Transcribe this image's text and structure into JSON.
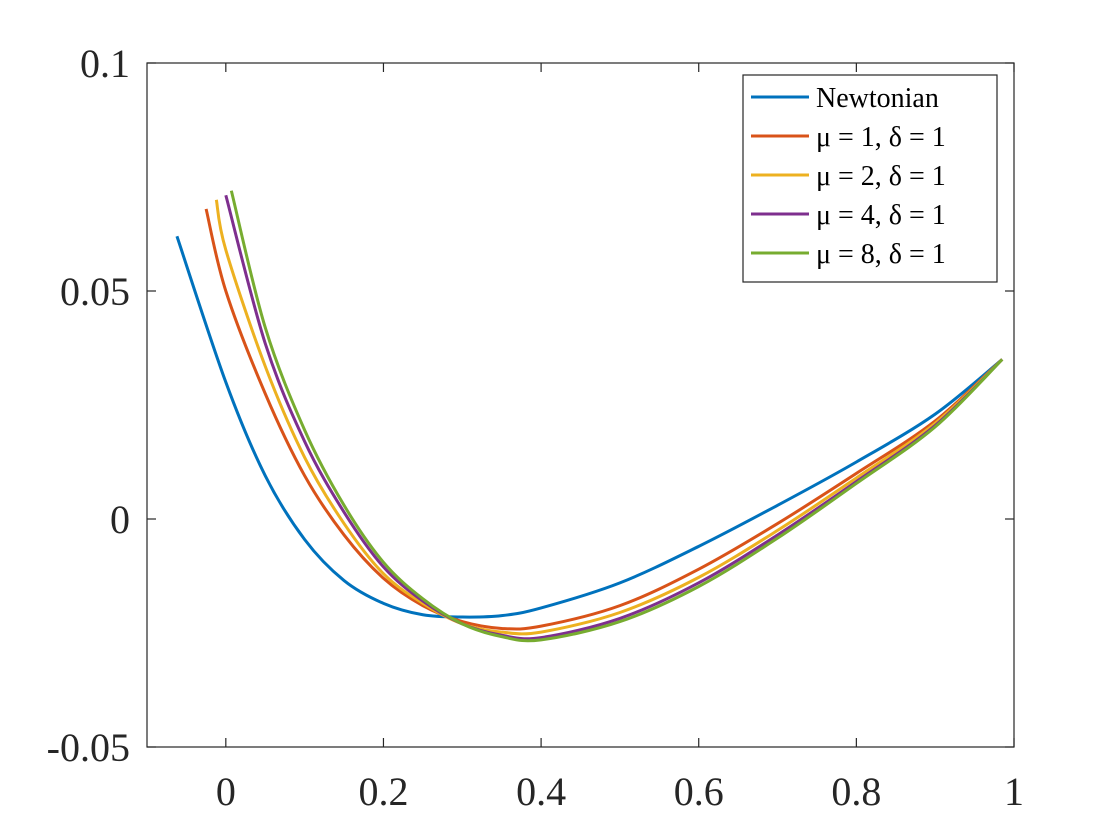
{
  "chart_data": {
    "type": "line",
    "title": "",
    "xlabel": "",
    "ylabel": "",
    "xlim": [
      -0.1,
      1.0
    ],
    "ylim": [
      -0.05,
      0.1
    ],
    "x_ticks": [
      0,
      0.2,
      0.4,
      0.6,
      0.8,
      1
    ],
    "x_tick_labels": [
      "0",
      "0.2",
      "0.4",
      "0.6",
      "0.8",
      "1"
    ],
    "y_ticks": [
      -0.05,
      0,
      0.05,
      0.1
    ],
    "y_tick_labels": [
      "-0.05",
      "0",
      "0.05",
      "0.1"
    ],
    "grid": false,
    "legend_position": "top-right",
    "series": [
      {
        "name": "Newtonian",
        "color": "#0072BD",
        "x": [
          -0.062,
          0.0,
          0.05,
          0.1,
          0.15,
          0.2,
          0.25,
          0.3,
          0.35,
          0.4,
          0.5,
          0.6,
          0.7,
          0.8,
          0.9,
          0.985
        ],
        "y": [
          0.062,
          0.03,
          0.0095,
          -0.0045,
          -0.0135,
          -0.0185,
          -0.021,
          -0.0215,
          -0.0212,
          -0.0195,
          -0.014,
          -0.006,
          0.003,
          0.0125,
          0.023,
          0.035
        ]
      },
      {
        "name": "μ = 1, δ = 1",
        "color": "#D95319",
        "x": [
          -0.025,
          0.0,
          0.05,
          0.1,
          0.15,
          0.2,
          0.25,
          0.3,
          0.35,
          0.4,
          0.5,
          0.6,
          0.7,
          0.8,
          0.9,
          0.985
        ],
        "y": [
          0.068,
          0.05,
          0.0275,
          0.0095,
          -0.0035,
          -0.013,
          -0.019,
          -0.0225,
          -0.024,
          -0.0235,
          -0.019,
          -0.011,
          -0.001,
          0.01,
          0.0215,
          0.035
        ]
      },
      {
        "name": "μ = 2, δ = 1",
        "color": "#EDB120",
        "x": [
          -0.012,
          0.0,
          0.05,
          0.1,
          0.15,
          0.2,
          0.25,
          0.3,
          0.35,
          0.4,
          0.5,
          0.6,
          0.7,
          0.8,
          0.9,
          0.985
        ],
        "y": [
          0.07,
          0.059,
          0.0335,
          0.0135,
          -0.001,
          -0.012,
          -0.0185,
          -0.023,
          -0.0248,
          -0.0248,
          -0.0205,
          -0.0128,
          -0.0025,
          0.009,
          0.021,
          0.035
        ]
      },
      {
        "name": "μ = 4, δ = 1",
        "color": "#7E2F8E",
        "x": [
          0.0,
          0.05,
          0.1,
          0.15,
          0.2,
          0.25,
          0.3,
          0.35,
          0.4,
          0.5,
          0.6,
          0.7,
          0.8,
          0.9,
          0.985
        ],
        "y": [
          0.071,
          0.0385,
          0.017,
          0.0015,
          -0.0105,
          -0.018,
          -0.023,
          -0.0255,
          -0.026,
          -0.0218,
          -0.014,
          -0.0035,
          0.0082,
          0.0205,
          0.035
        ]
      },
      {
        "name": "μ = 8, δ = 1",
        "color": "#77AC30",
        "x": [
          0.007,
          0.05,
          0.1,
          0.15,
          0.2,
          0.25,
          0.3,
          0.35,
          0.4,
          0.5,
          0.6,
          0.7,
          0.8,
          0.9,
          0.985
        ],
        "y": [
          0.072,
          0.042,
          0.0195,
          0.003,
          -0.0095,
          -0.0175,
          -0.023,
          -0.0258,
          -0.0265,
          -0.0225,
          -0.0148,
          -0.0042,
          0.0078,
          0.0202,
          0.035
        ]
      }
    ]
  }
}
